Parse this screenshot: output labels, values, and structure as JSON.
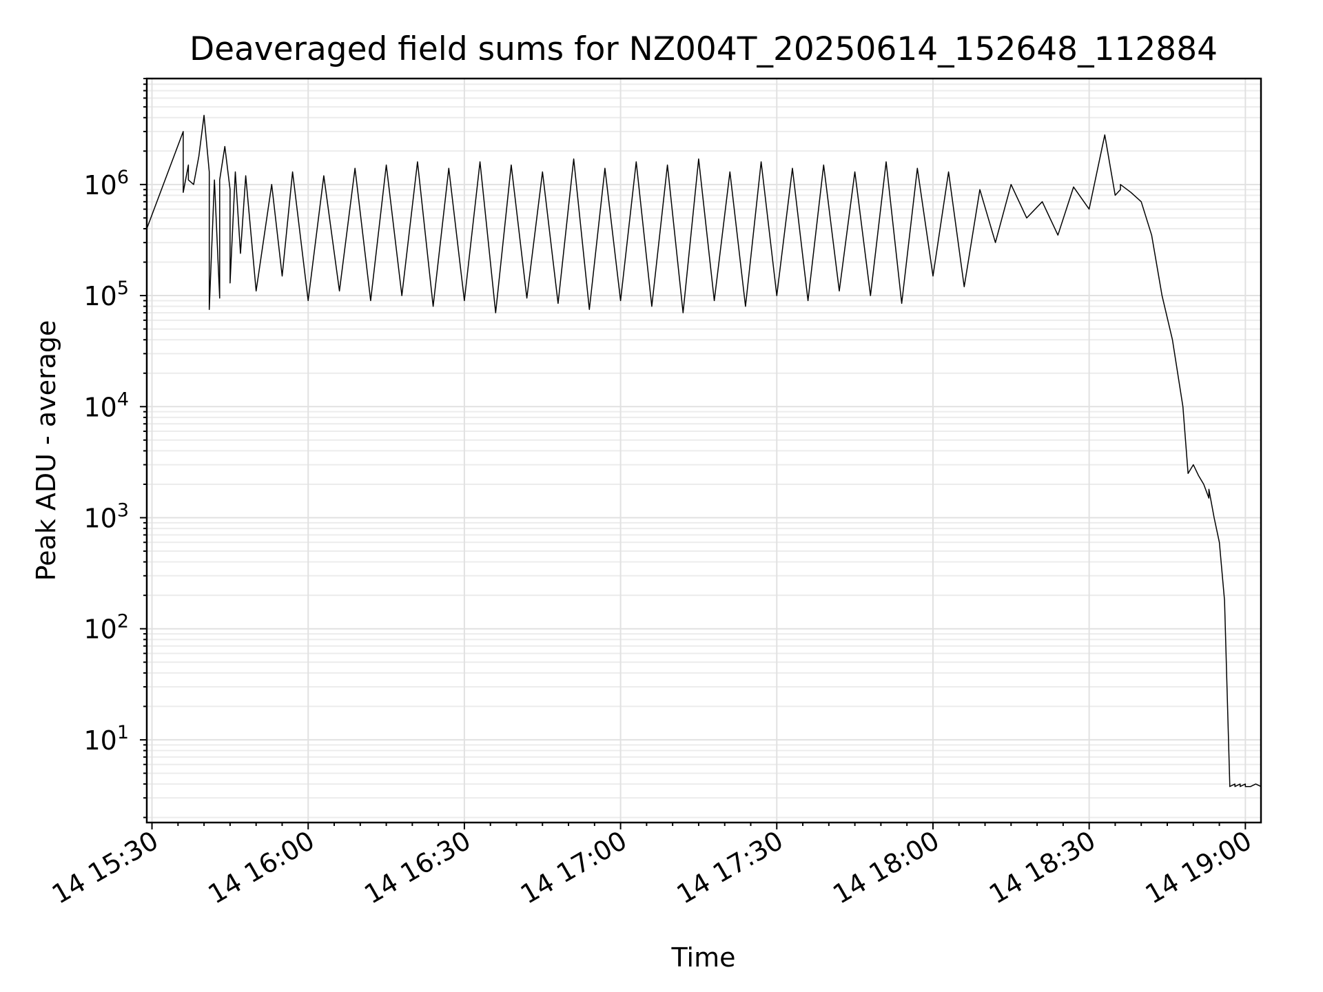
{
  "chart_data": {
    "type": "line",
    "title": "Deaveraged field sums for NZ004T_20250614_152648_112884",
    "xlabel": "Time",
    "ylabel": "Peak ADU - average",
    "x_scale": "time",
    "y_scale": "log",
    "xlim": [
      "2025-06-14 15:29",
      "2025-06-14 19:03"
    ],
    "ylim": [
      1.8,
      9000000
    ],
    "grid": true,
    "x_tick_labels": [
      "14 15:30",
      "14 16:00",
      "14 16:30",
      "14 17:00",
      "14 17:30",
      "14 18:00",
      "14 18:30",
      "14 19:00"
    ],
    "y_tick_values": [
      10,
      100,
      1000,
      10000,
      100000,
      1000000
    ],
    "y_tick_labels": [
      {
        "base": "10",
        "exp": "1"
      },
      {
        "base": "10",
        "exp": "2"
      },
      {
        "base": "10",
        "exp": "3"
      },
      {
        "base": "10",
        "exp": "4"
      },
      {
        "base": "10",
        "exp": "5"
      },
      {
        "base": "10",
        "exp": "6"
      }
    ],
    "series": [
      {
        "name": "",
        "x": [
          "15:29",
          "15:36",
          "15:36",
          "15:37",
          "15:37",
          "15:38",
          "15:39",
          "15:40",
          "15:41",
          "15:41",
          "15:42",
          "15:43",
          "15:43",
          "15:44",
          "15:45",
          "15:45",
          "15:46",
          "15:47",
          "15:48",
          "15:50",
          "15:53",
          "15:55",
          "15:57",
          "16:00",
          "16:03",
          "16:06",
          "16:09",
          "16:12",
          "16:15",
          "16:18",
          "16:21",
          "16:24",
          "16:27",
          "16:30",
          "16:33",
          "16:36",
          "16:39",
          "16:42",
          "16:45",
          "16:48",
          "16:51",
          "16:54",
          "16:57",
          "17:00",
          "17:03",
          "17:06",
          "17:09",
          "17:12",
          "17:15",
          "17:18",
          "17:21",
          "17:24",
          "17:27",
          "17:30",
          "17:33",
          "17:36",
          "17:39",
          "17:42",
          "17:45",
          "17:48",
          "17:51",
          "17:54",
          "17:57",
          "18:00",
          "18:03",
          "18:06",
          "18:09",
          "18:12",
          "18:15",
          "18:18",
          "18:21",
          "18:24",
          "18:27",
          "18:30",
          "18:33",
          "18:35",
          "18:36",
          "18:36",
          "18:38",
          "18:40",
          "18:42",
          "18:44",
          "18:46",
          "18:48",
          "18:49",
          "18:50",
          "18:51",
          "18:52",
          "18:53",
          "18:53",
          "18:54",
          "18:55",
          "18:56",
          "18:57",
          "18:57",
          "18:58",
          "18:58",
          "18:59",
          "18:59",
          "19:00",
          "19:00",
          "19:01",
          "19:02",
          "19:03"
        ],
        "y": [
          400000,
          3000000,
          850000,
          1500000,
          1100000,
          1000000,
          1800000,
          4200000,
          1300000,
          75000,
          1100000,
          95000,
          1100000,
          2200000,
          900000,
          130000,
          1300000,
          240000,
          1200000,
          110000,
          1000000,
          150000,
          1300000,
          90000,
          1200000,
          110000,
          1400000,
          90000,
          1500000,
          100000,
          1600000,
          80000,
          1400000,
          90000,
          1600000,
          70000,
          1500000,
          95000,
          1300000,
          85000,
          1700000,
          75000,
          1400000,
          90000,
          1600000,
          80000,
          1500000,
          70000,
          1700000,
          90000,
          1300000,
          80000,
          1600000,
          100000,
          1400000,
          90000,
          1500000,
          110000,
          1300000,
          100000,
          1600000,
          85000,
          1400000,
          150000,
          1300000,
          120000,
          900000,
          300000,
          1000000,
          500000,
          700000,
          350000,
          950000,
          600000,
          2800000,
          800000,
          900000,
          1000000,
          850000,
          700000,
          350000,
          100000,
          40000,
          10000,
          2500,
          3000,
          2400,
          2000,
          1500,
          1800,
          1000,
          600,
          180,
          4,
          3.8,
          4,
          3.8,
          4,
          3.8,
          4,
          3.8,
          3.8,
          4,
          3.8
        ]
      }
    ]
  }
}
